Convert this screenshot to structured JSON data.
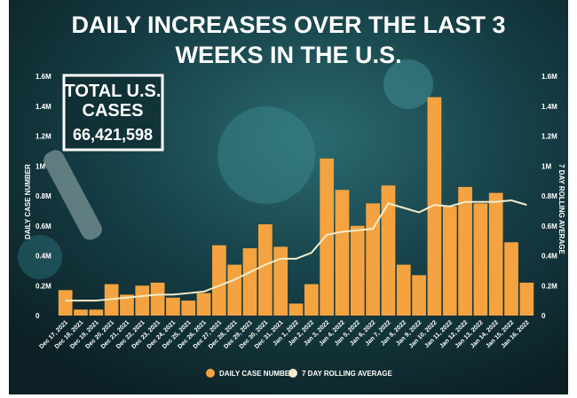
{
  "chart_data": {
    "type": "bar",
    "title_line1": "DAILY INCREASES OVER THE LAST 3",
    "title_line2": "WEEKS IN THE U.S.",
    "total_box": {
      "line1": "TOTAL U.S.",
      "line2": "CASES",
      "value": "66,421,598"
    },
    "ylabel": "DAILY CASE NUMBER",
    "ylabel_right": "7 DAY ROLLING AVERAGE",
    "ylim": [
      0,
      1.6
    ],
    "yticks": [
      "0",
      "0.2M",
      "0.4M",
      "0.6M",
      "0.8M",
      "1M",
      "1.2M",
      "1.4M",
      "1.6M"
    ],
    "categories": [
      "Dec 17, 2021",
      "Dec 18, 2021",
      "Dec 19, 2021",
      "Dec 20, 2021",
      "Dec 21, 2021",
      "Dec 22, 2021",
      "Dec 23, 2021",
      "Dec 24, 2021",
      "Dec 25, 2021",
      "Dec 26, 2021",
      "Dec 27, 2021",
      "Dec 28, 2021",
      "Dec 29, 2021",
      "Dec 30, 2021",
      "Dec 31, 2021",
      "Jan 1, 2022",
      "Jan 2, 2022",
      "Jan 3, 2022",
      "Jan 4, 2022",
      "Jan 5, 2022",
      "Jan 6, 2022",
      "Jan 7, 2022",
      "Jan 8, 2022",
      "Jan 9, 2022",
      "Jan 10, 2022",
      "Jan 11, 2022",
      "Jan 12, 2022",
      "Jan 13, 2022",
      "Jan 14, 2022",
      "Jan 15, 2022",
      "Jan 16, 2022"
    ],
    "series": [
      {
        "name": "DAILY CASE NUMBER",
        "type": "bar",
        "color": "#f4a340",
        "values": [
          0.17,
          0.04,
          0.04,
          0.21,
          0.14,
          0.2,
          0.22,
          0.12,
          0.1,
          0.15,
          0.47,
          0.34,
          0.45,
          0.61,
          0.46,
          0.08,
          0.21,
          1.05,
          0.84,
          0.6,
          0.75,
          0.87,
          0.34,
          0.27,
          1.46,
          0.73,
          0.86,
          0.75,
          0.82,
          0.49,
          0.22
        ]
      },
      {
        "name": "7 DAY ROLLING AVERAGE",
        "type": "line",
        "color": "#f3edcc",
        "values": [
          0.1,
          0.1,
          0.1,
          0.11,
          0.12,
          0.13,
          0.14,
          0.14,
          0.15,
          0.16,
          0.2,
          0.24,
          0.29,
          0.34,
          0.38,
          0.38,
          0.42,
          0.54,
          0.56,
          0.57,
          0.58,
          0.75,
          0.72,
          0.69,
          0.74,
          0.73,
          0.76,
          0.76,
          0.76,
          0.77,
          0.74
        ]
      }
    ],
    "grid": false,
    "legend": "bottom-center"
  }
}
